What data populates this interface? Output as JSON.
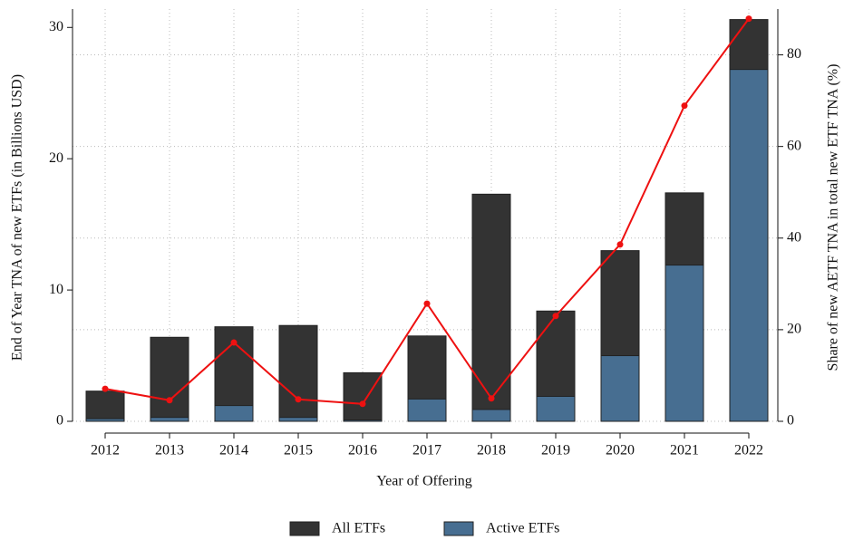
{
  "chart_data": {
    "type": "bar-line",
    "xlabel": "Year of Offering",
    "ylabel": "End of Year TNA of new ETFs (in Billions USD)",
    "y2label": "Share of new AETF TNA in total new ETF TNA (%)",
    "categories": [
      "2012",
      "2013",
      "2014",
      "2015",
      "2016",
      "2017",
      "2018",
      "2019",
      "2020",
      "2021",
      "2022"
    ],
    "series": [
      {
        "name": "All ETFs",
        "type": "bar",
        "color": "#333333",
        "values": [
          2.3,
          6.4,
          7.2,
          7.3,
          3.7,
          6.5,
          17.3,
          8.4,
          13.0,
          17.4,
          30.6
        ]
      },
      {
        "name": "Active ETFs",
        "type": "bar",
        "color": "#476e91",
        "values": [
          0.2,
          0.3,
          1.2,
          0.3,
          0.1,
          1.7,
          0.9,
          1.9,
          5.0,
          11.9,
          26.8
        ]
      },
      {
        "type": "line",
        "axis": "y2",
        "color": "#ee1111",
        "values": [
          7.1,
          4.6,
          17.2,
          4.8,
          3.8,
          25.7,
          5.0,
          23.0,
          38.6,
          68.9,
          87.9
        ]
      }
    ],
    "ylim": [
      0,
      31.4
    ],
    "yticks": [
      0,
      10,
      20,
      30
    ],
    "y2lim": [
      0,
      90
    ],
    "y2ticks": [
      0,
      20,
      40,
      60,
      80
    ],
    "grid": true,
    "legend": "bottom"
  }
}
